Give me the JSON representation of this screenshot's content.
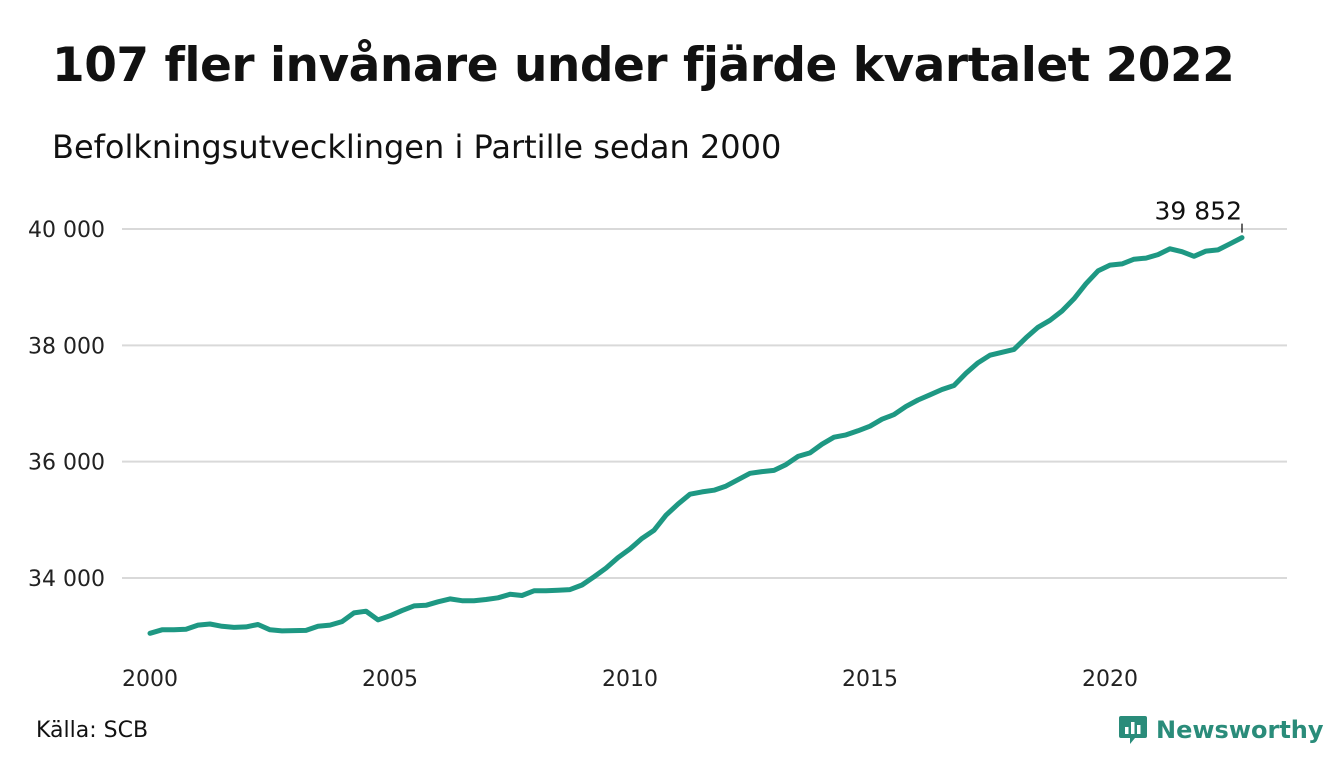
{
  "title": "107 fler invånare under fjärde kvartalet 2022",
  "subtitle": "Befolkningsutvecklingen i Partille sedan 2000",
  "source": "Källa: SCB",
  "brand": {
    "name": "Newsworthy",
    "color": "#2a8c7a",
    "icon": "chart-speech-bubble-icon"
  },
  "colors": {
    "line": "#1e9883",
    "grid": "#d9d9d9"
  },
  "chart_data": {
    "type": "line",
    "title": "107 fler invånare under fjärde kvartalet 2022",
    "subtitle": "Befolkningsutvecklingen i Partille sedan 2000",
    "xlim": [
      2000,
      2023.5
    ],
    "ylim": [
      32600,
      40600
    ],
    "x_ticks": [
      2000,
      2005,
      2010,
      2015,
      2020
    ],
    "x_tick_labels": [
      "2000",
      "2005",
      "2010",
      "2015",
      "2020"
    ],
    "y_ticks": [
      34000,
      36000,
      38000,
      40000
    ],
    "y_tick_labels": [
      "34 000",
      "36 000",
      "38 000",
      "40 000"
    ],
    "grid": "horizontal",
    "legend": "none",
    "end_label": "39 852",
    "x": [
      2000.0,
      2000.25,
      2000.5,
      2000.75,
      2001.0,
      2001.25,
      2001.5,
      2001.75,
      2002.0,
      2002.25,
      2002.5,
      2002.75,
      2003.0,
      2003.25,
      2003.5,
      2003.75,
      2004.0,
      2004.25,
      2004.5,
      2004.75,
      2005.0,
      2005.25,
      2005.5,
      2005.75,
      2006.0,
      2006.25,
      2006.5,
      2006.75,
      2007.0,
      2007.25,
      2007.5,
      2007.75,
      2008.0,
      2008.25,
      2008.5,
      2008.75,
      2009.0,
      2009.25,
      2009.5,
      2009.75,
      2010.0,
      2010.25,
      2010.5,
      2010.75,
      2011.0,
      2011.25,
      2011.5,
      2011.75,
      2012.0,
      2012.25,
      2012.5,
      2012.75,
      2013.0,
      2013.25,
      2013.5,
      2013.75,
      2014.0,
      2014.25,
      2014.5,
      2014.75,
      2015.0,
      2015.25,
      2015.5,
      2015.75,
      2016.0,
      2016.25,
      2016.5,
      2016.75,
      2017.0,
      2017.25,
      2017.5,
      2017.75,
      2018.0,
      2018.25,
      2018.5,
      2018.75,
      2019.0,
      2019.25,
      2019.5,
      2019.75,
      2020.0,
      2020.25,
      2020.5,
      2020.75,
      2021.0,
      2021.25,
      2021.5,
      2021.75,
      2022.0,
      2022.25,
      2022.5,
      2022.75
    ],
    "series": [
      {
        "values": [
          33050,
          33110,
          33110,
          33120,
          33190,
          33210,
          33170,
          33150,
          33160,
          33200,
          33110,
          33090,
          33095,
          33100,
          33170,
          33190,
          33250,
          33400,
          33430,
          33280,
          33350,
          33440,
          33520,
          33530,
          33590,
          33640,
          33610,
          33610,
          33630,
          33660,
          33720,
          33700,
          33780,
          33780,
          33790,
          33800,
          33880,
          34020,
          34170,
          34350,
          34500,
          34680,
          34820,
          35080,
          35270,
          35440,
          35480,
          35510,
          35580,
          35690,
          35800,
          35830,
          35850,
          35950,
          36090,
          36150,
          36300,
          36420,
          36460,
          36530,
          36610,
          36730,
          36810,
          36950,
          37060,
          37150,
          37240,
          37310,
          37520,
          37700,
          37830,
          37880,
          37930,
          38130,
          38310,
          38430,
          38590,
          38800,
          39060,
          39280,
          39380,
          39400,
          39480,
          39500,
          39560,
          39660,
          39610,
          39530,
          39620,
          39640,
          39745,
          39852
        ]
      }
    ]
  }
}
